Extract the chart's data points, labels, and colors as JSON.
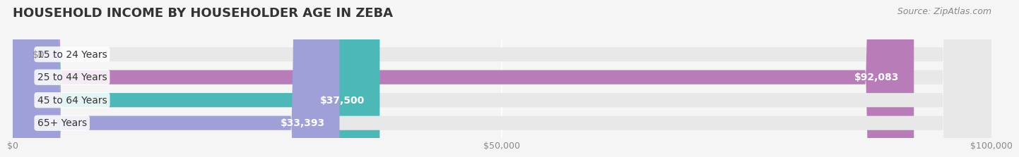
{
  "title": "HOUSEHOLD INCOME BY HOUSEHOLDER AGE IN ZEBA",
  "source": "Source: ZipAtlas.com",
  "categories": [
    "15 to 24 Years",
    "25 to 44 Years",
    "45 to 64 Years",
    "65+ Years"
  ],
  "values": [
    0,
    92083,
    37500,
    33393
  ],
  "bar_colors": [
    "#9ab8d8",
    "#b87db8",
    "#4db8b8",
    "#a0a0d8"
  ],
  "value_labels": [
    "$0",
    "$92,083",
    "$37,500",
    "$33,393"
  ],
  "xlim": [
    0,
    100000
  ],
  "xticks": [
    0,
    50000,
    100000
  ],
  "xtick_labels": [
    "$0",
    "$50,000",
    "$100,000"
  ],
  "background_color": "#f5f5f5",
  "bar_background_color": "#e8e8e8",
  "title_fontsize": 13,
  "label_fontsize": 10,
  "tick_fontsize": 9,
  "source_fontsize": 9
}
